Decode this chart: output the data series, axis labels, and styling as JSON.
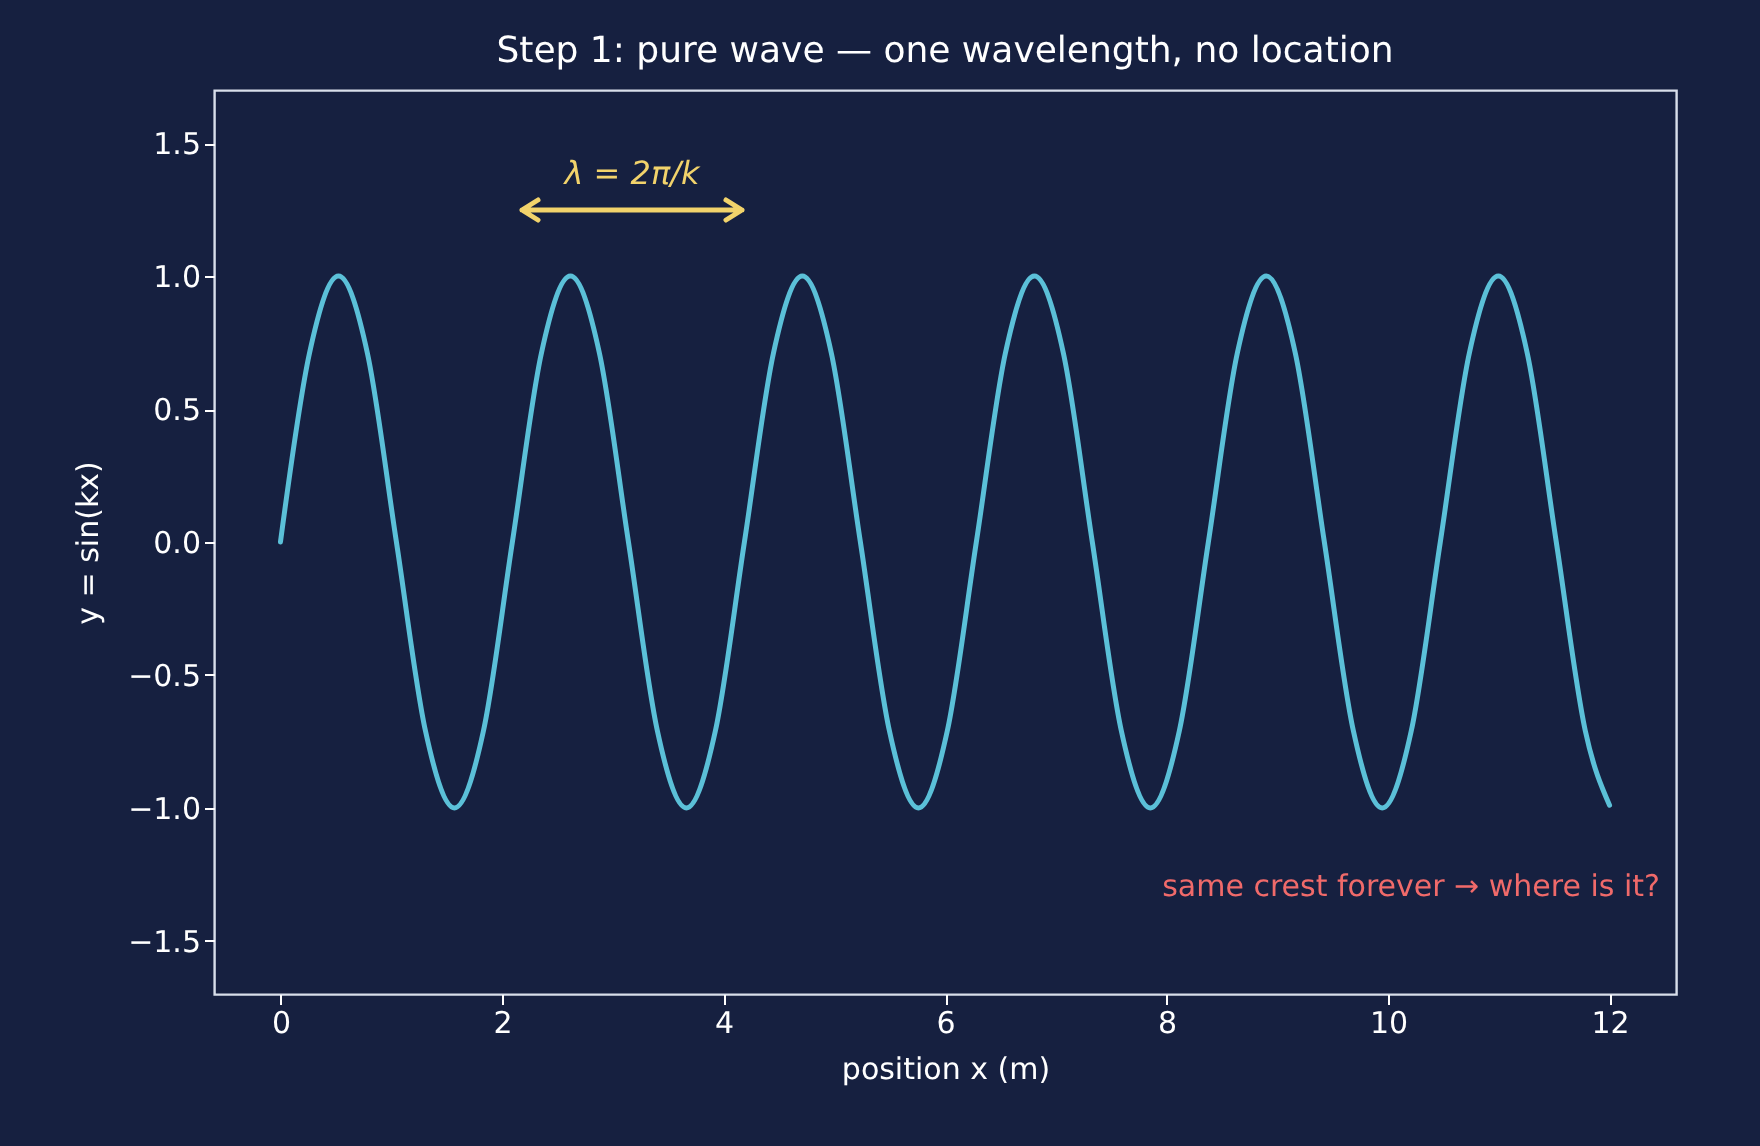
{
  "chart_data": {
    "type": "line",
    "title": "Step 1: pure wave — one wavelength, no location",
    "xlabel": "position x (m)",
    "ylabel": "y = sin(kx)",
    "x": [
      0,
      0.262,
      0.524,
      0.785,
      1.047,
      1.309,
      1.571,
      1.833,
      2.094,
      2.356,
      2.618,
      2.88,
      3.142,
      3.403,
      3.665,
      3.927,
      4.189,
      4.451,
      4.712,
      4.974,
      5.236,
      5.498,
      5.76,
      6.021,
      6.283,
      6.545,
      6.807,
      7.069,
      7.33,
      7.592,
      7.854,
      8.116,
      8.378,
      8.639,
      8.901,
      9.163,
      9.425,
      9.687,
      9.948,
      10.21,
      10.472,
      10.734,
      10.996,
      11.257,
      11.519,
      11.781,
      12
    ],
    "series": [
      {
        "color": "#5bc0d8",
        "values": [
          0,
          0.71,
          1,
          0.71,
          0,
          -0.71,
          -1,
          -0.71,
          0,
          0.71,
          1,
          0.71,
          0,
          -0.71,
          -1,
          -0.71,
          0,
          0.71,
          1,
          0.71,
          0,
          -0.71,
          -1,
          -0.71,
          0,
          0.71,
          1,
          0.71,
          0,
          -0.71,
          -1,
          -0.71,
          0,
          0.71,
          1,
          0.71,
          0,
          -0.71,
          -1,
          -0.71,
          0,
          0.71,
          1,
          0.71,
          0,
          -0.71,
          -0.99
        ]
      }
    ],
    "xlim": [
      -0.6,
      12.6
    ],
    "ylim": [
      -1.7,
      1.7
    ],
    "xticks": [
      0,
      2,
      4,
      6,
      8,
      10,
      12
    ],
    "yticks": [
      {
        "value": -1.5,
        "label": "−1.5"
      },
      {
        "value": -1,
        "label": "−1.0"
      },
      {
        "value": -0.5,
        "label": "−0.5"
      },
      {
        "value": 0,
        "label": "0.0"
      },
      {
        "value": 0.5,
        "label": "0.5"
      },
      {
        "value": 1,
        "label": "1.0"
      },
      {
        "value": 1.5,
        "label": "1.5"
      }
    ],
    "grid": false,
    "marker": "none",
    "line_style": "solid",
    "annotations": [
      "λ = 2π/k",
      "same crest forever → where is it?"
    ]
  }
}
